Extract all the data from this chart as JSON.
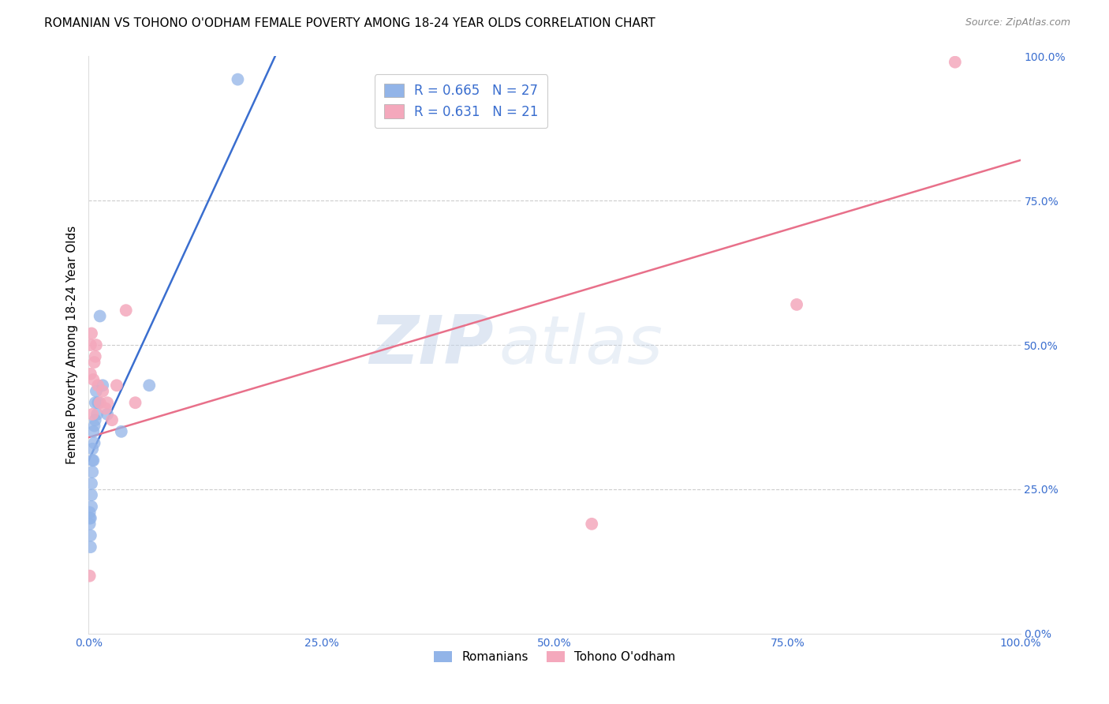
{
  "title": "ROMANIAN VS TOHONO O'ODHAM FEMALE POVERTY AMONG 18-24 YEAR OLDS CORRELATION CHART",
  "source": "Source: ZipAtlas.com",
  "ylabel": "Female Poverty Among 18-24 Year Olds",
  "xlim": [
    0,
    1.0
  ],
  "ylim": [
    0,
    1.0
  ],
  "xticks": [
    0.0,
    0.25,
    0.5,
    0.75,
    1.0
  ],
  "yticks": [
    0.0,
    0.25,
    0.5,
    0.75,
    1.0
  ],
  "xtick_labels": [
    "0.0%",
    "25.0%",
    "50.0%",
    "75.0%",
    "100.0%"
  ],
  "ytick_labels": [
    "0.0%",
    "25.0%",
    "50.0%",
    "75.0%",
    "100.0%"
  ],
  "blue_color": "#92b4e8",
  "pink_color": "#f4a8bc",
  "blue_line_color": "#3a6ecf",
  "pink_line_color": "#e8708a",
  "legend_blue_r": "R = 0.665",
  "legend_blue_n": "N = 27",
  "legend_pink_r": "R = 0.631",
  "legend_pink_n": "N = 21",
  "watermark_zip": "ZIP",
  "watermark_atlas": "atlas",
  "blue_label": "Romanians",
  "pink_label": "Tohono O'odham",
  "blue_line_x0": 0.0,
  "blue_line_y0": 0.3,
  "blue_line_x1": 0.2,
  "blue_line_y1": 1.0,
  "pink_line_x0": 0.0,
  "pink_line_y0": 0.34,
  "pink_line_x1": 1.0,
  "pink_line_y1": 0.82,
  "romanian_x": [
    0.001,
    0.001,
    0.001,
    0.002,
    0.002,
    0.002,
    0.003,
    0.003,
    0.003,
    0.004,
    0.004,
    0.004,
    0.005,
    0.005,
    0.006,
    0.006,
    0.007,
    0.007,
    0.008,
    0.009,
    0.01,
    0.012,
    0.015,
    0.02,
    0.035,
    0.065,
    0.16
  ],
  "romanian_y": [
    0.19,
    0.2,
    0.21,
    0.15,
    0.17,
    0.2,
    0.22,
    0.24,
    0.26,
    0.28,
    0.3,
    0.32,
    0.3,
    0.35,
    0.33,
    0.36,
    0.37,
    0.4,
    0.42,
    0.38,
    0.4,
    0.55,
    0.43,
    0.38,
    0.35,
    0.43,
    0.96
  ],
  "tohono_x": [
    0.001,
    0.002,
    0.002,
    0.003,
    0.004,
    0.005,
    0.006,
    0.007,
    0.008,
    0.01,
    0.012,
    0.015,
    0.018,
    0.02,
    0.025,
    0.03,
    0.04,
    0.05,
    0.54,
    0.76,
    0.93
  ],
  "tohono_y": [
    0.1,
    0.45,
    0.5,
    0.52,
    0.38,
    0.44,
    0.47,
    0.48,
    0.5,
    0.43,
    0.4,
    0.42,
    0.39,
    0.4,
    0.37,
    0.43,
    0.56,
    0.4,
    0.19,
    0.57,
    0.99
  ]
}
